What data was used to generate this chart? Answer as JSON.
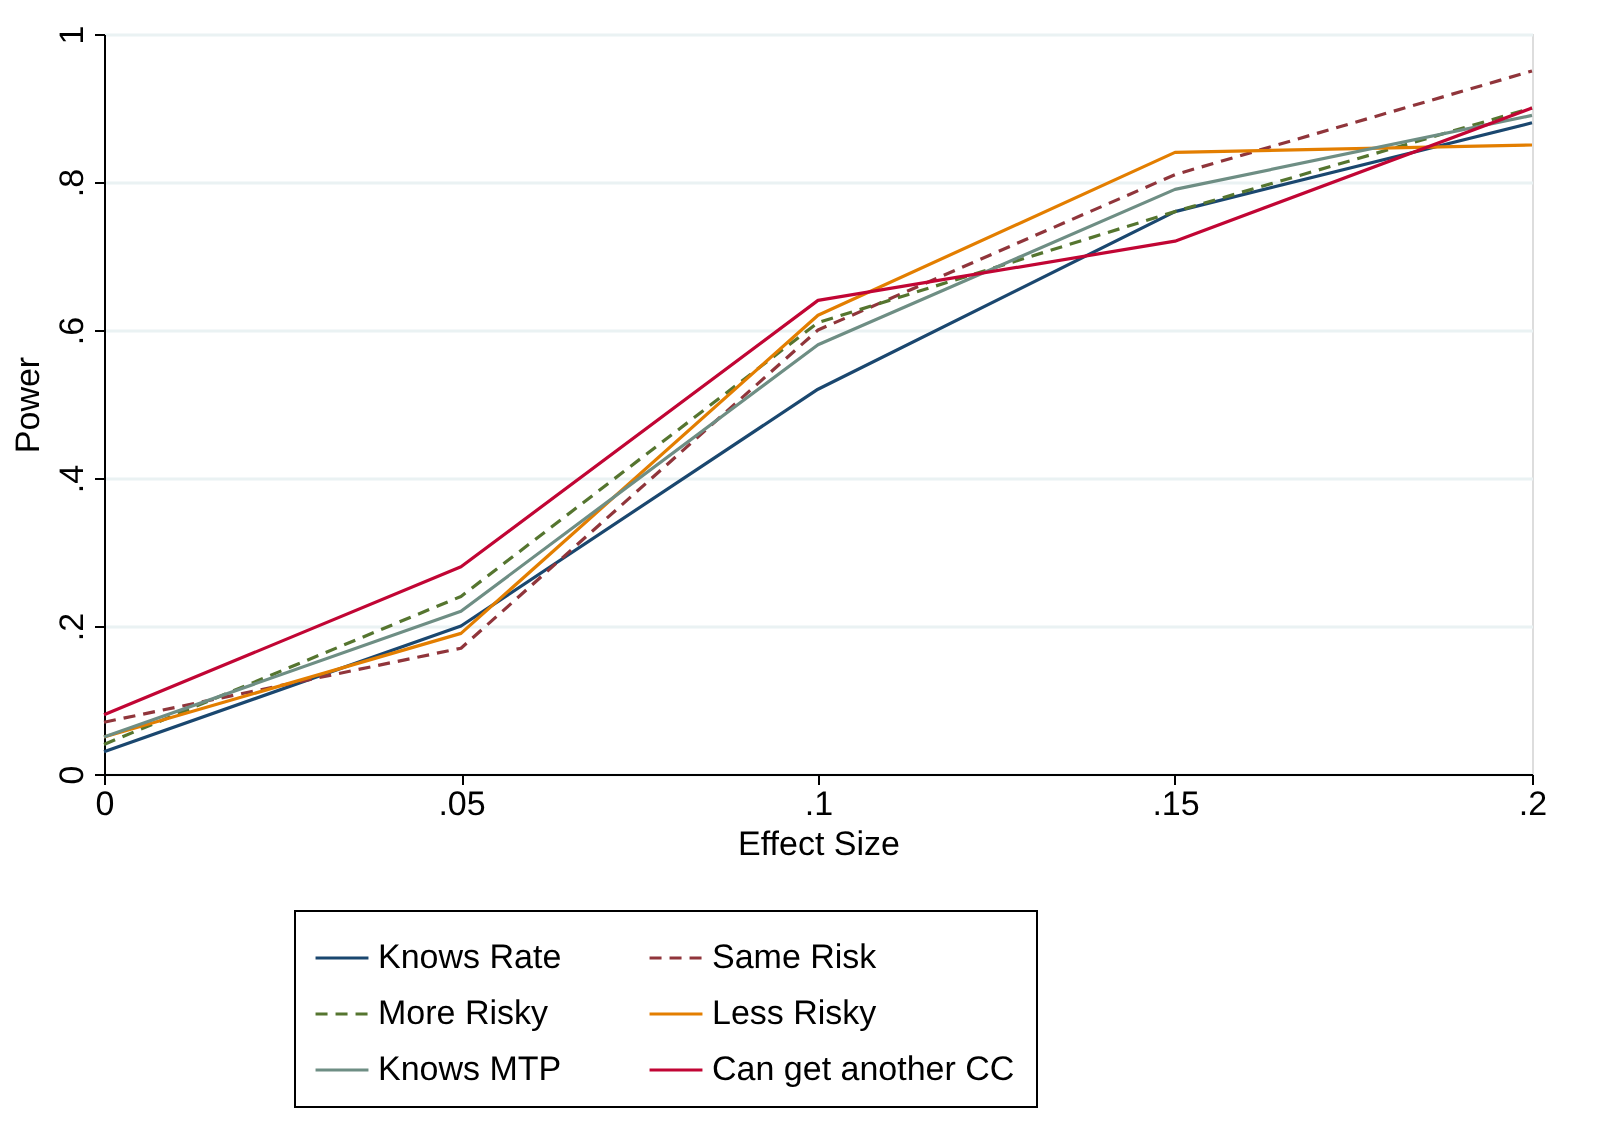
{
  "chart_data": {
    "type": "line",
    "xlabel": "Effect Size",
    "ylabel": "Power",
    "x": [
      0,
      0.05,
      0.1,
      0.15,
      0.2
    ],
    "xlim": [
      0,
      0.2
    ],
    "xticks": [
      0,
      {
        "value": 0.05,
        "label": ".05"
      },
      {
        "value": 0.1,
        "label": ".1"
      },
      {
        "value": 0.15,
        "label": ".15"
      },
      {
        "value": 0.2,
        "label": ".2"
      }
    ],
    "ylim": [
      0,
      1
    ],
    "yticks": [
      0,
      {
        "value": 0.2,
        "label": ".2"
      },
      {
        "value": 0.4,
        "label": ".4"
      },
      {
        "value": 0.6,
        "label": ".6"
      },
      {
        "value": 0.8,
        "label": ".8"
      },
      1
    ],
    "grid": "y",
    "legend": "bottom",
    "marker": "none",
    "series": [
      {
        "name": "Knows Rate",
        "color": "#1a476f",
        "line_style": "solid",
        "values": [
          0.03,
          0.2,
          0.52,
          0.76,
          0.88
        ]
      },
      {
        "name": "Same Risk",
        "color": "#90353b",
        "line_style": "dashed",
        "values": [
          0.07,
          0.17,
          0.6,
          0.81,
          0.95
        ]
      },
      {
        "name": "More Risky",
        "color": "#55752f",
        "line_style": "dashed",
        "values": [
          0.04,
          0.24,
          0.61,
          0.76,
          0.9
        ]
      },
      {
        "name": "Less Risky",
        "color": "#e37e00",
        "line_style": "solid",
        "values": [
          0.05,
          0.19,
          0.62,
          0.84,
          0.85
        ]
      },
      {
        "name": "Knows MTP",
        "color": "#6e8e84",
        "line_style": "solid",
        "values": [
          0.05,
          0.22,
          0.58,
          0.79,
          0.89
        ]
      },
      {
        "name": "Can get another CC",
        "color": "#c10534",
        "line_style": "solid",
        "values": [
          0.08,
          0.28,
          0.64,
          0.72,
          0.9
        ]
      }
    ]
  }
}
